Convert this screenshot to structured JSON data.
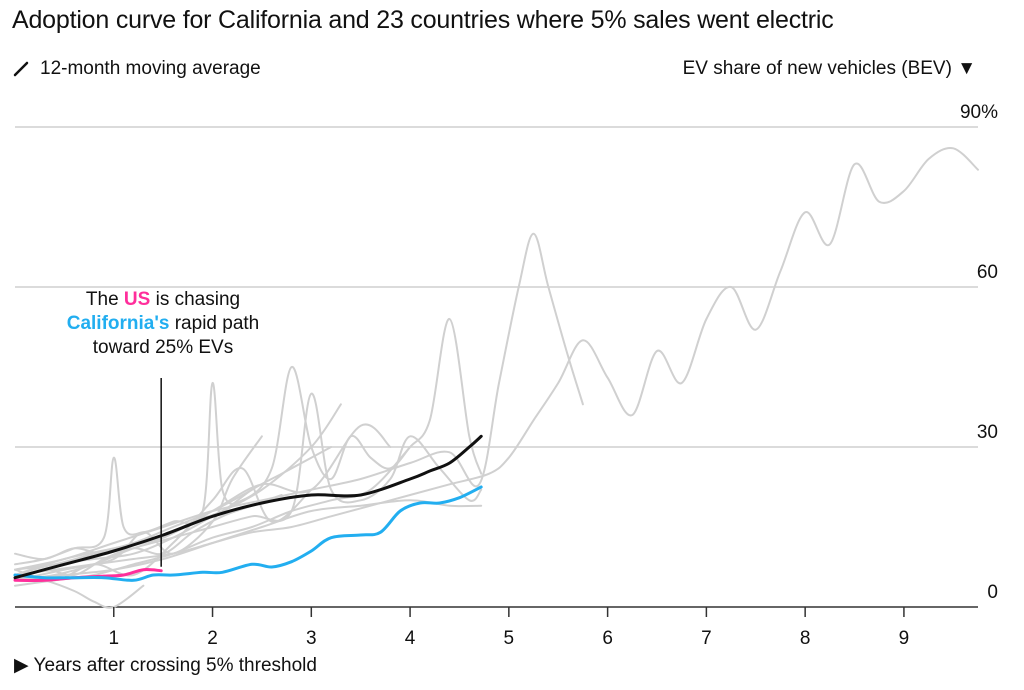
{
  "title": "Adoption curve for California and 23 countries where 5% sales went electric",
  "legend": {
    "icon": "diagonal-line-icon",
    "label": "12-month moving average"
  },
  "annotation": {
    "line1_prefix": "The ",
    "us": "US",
    "line1_suffix": " is chasing",
    "california": "California's",
    "line2_suffix": " rapid path",
    "line3": "toward 25% EVs"
  },
  "colors": {
    "us": "#ff2e9b",
    "california": "#22aef0",
    "average": "#111111",
    "countries": "#d0d0d0",
    "grid": "#cfcfcf"
  },
  "chart_data": {
    "type": "line",
    "ylabel": "EV share of new vehicles (BEV) ▼",
    "xlabel": "▶ Years after crossing 5% threshold",
    "xlim": [
      0,
      9.75
    ],
    "ylim": [
      0,
      90
    ],
    "xticks": [
      "1",
      "2",
      "3",
      "4",
      "5",
      "6",
      "7",
      "8",
      "9"
    ],
    "yticks": [
      "0",
      "30",
      "60",
      "90%"
    ],
    "grid": true,
    "series": [
      {
        "name": "12-month moving average",
        "role": "average",
        "x": [
          0,
          0.5,
          1.0,
          1.5,
          2.0,
          2.5,
          3.0,
          3.5,
          4.0,
          4.2,
          4.4,
          4.6,
          4.72
        ],
        "y": [
          5.5,
          8,
          10.5,
          13.5,
          17,
          19.5,
          21,
          21,
          24,
          25.5,
          27,
          30,
          32
        ]
      },
      {
        "name": "California",
        "role": "california",
        "x": [
          0,
          0.3,
          0.6,
          0.9,
          1.2,
          1.4,
          1.6,
          1.9,
          2.1,
          2.4,
          2.6,
          2.8,
          3.0,
          3.2,
          3.5,
          3.7,
          3.9,
          4.1,
          4.3,
          4.5,
          4.72
        ],
        "y": [
          6,
          5.5,
          5.5,
          5.5,
          5,
          6,
          6,
          6.5,
          6.5,
          8,
          7.5,
          8.5,
          10.5,
          13,
          13.5,
          14,
          18,
          19.5,
          19.5,
          20.5,
          22.5
        ]
      },
      {
        "name": "US",
        "role": "us",
        "x": [
          0,
          0.3,
          0.6,
          0.9,
          1.1,
          1.3,
          1.48
        ],
        "y": [
          5,
          5,
          5.5,
          5.8,
          6,
          7,
          6.8
        ]
      },
      {
        "name": "",
        "role": "country",
        "x": [
          0,
          0.4,
          0.8,
          1.2,
          1.6,
          2.0,
          2.4,
          2.8,
          3.2,
          3.6,
          4.0,
          4.4,
          4.8,
          5.0,
          5.25,
          5.5,
          5.75,
          6.0,
          6.25,
          6.5,
          6.75,
          7.0,
          7.25,
          7.5,
          7.75,
          8.0,
          8.25,
          8.5,
          8.75,
          9.0,
          9.25,
          9.5,
          9.75
        ],
        "y": [
          6,
          7,
          8,
          9,
          10,
          12,
          14,
          15,
          17,
          19,
          21,
          23,
          25,
          28,
          35,
          42,
          50,
          43,
          36,
          48,
          42,
          54,
          60,
          52,
          63,
          74,
          68,
          83,
          76,
          78,
          84,
          86,
          82
        ]
      },
      {
        "name": "",
        "role": "country",
        "x": [
          0,
          0.5,
          1.0,
          1.5,
          2.0,
          2.5,
          3.0,
          3.5,
          4.0,
          4.4,
          4.7,
          4.9,
          5.1,
          5.25,
          5.4,
          5.6,
          5.75
        ],
        "y": [
          7,
          9,
          12,
          15,
          18,
          20,
          22,
          24,
          27,
          29,
          23,
          42,
          60,
          70,
          60,
          47,
          38
        ]
      },
      {
        "name": "",
        "role": "country",
        "x": [
          0,
          0.3,
          0.6,
          0.9,
          1.0,
          1.1,
          1.3,
          1.6,
          1.9,
          2.0,
          2.1,
          2.3,
          2.6,
          2.8,
          3.0,
          3.2,
          3.4,
          3.6,
          3.8,
          4.0,
          4.2,
          4.4,
          4.6,
          4.72
        ],
        "y": [
          8,
          9,
          11,
          13,
          28,
          15,
          14,
          16,
          18,
          42,
          22,
          20,
          26,
          45,
          30,
          24,
          32,
          28,
          26,
          30,
          35,
          54,
          32,
          25
        ]
      },
      {
        "name": "",
        "role": "country",
        "x": [
          0,
          0.4,
          0.8,
          1.2,
          1.6,
          2.0,
          2.4,
          2.8,
          3.0,
          3.2,
          3.5,
          3.8,
          4.0,
          4.3,
          4.6,
          4.72
        ],
        "y": [
          5,
          6,
          8,
          11,
          13,
          15,
          17,
          18,
          40,
          22,
          20,
          24,
          32,
          26,
          20,
          22
        ]
      },
      {
        "name": "",
        "role": "country",
        "x": [
          0,
          0.4,
          0.8,
          1.2,
          1.6,
          2.0,
          2.5,
          3.0,
          3.3
        ],
        "y": [
          6,
          8,
          9,
          10,
          13,
          17,
          22,
          30,
          38
        ]
      },
      {
        "name": "",
        "role": "country",
        "x": [
          0,
          0.3,
          0.6,
          0.9,
          1.2,
          1.5,
          1.8,
          2.1,
          2.4,
          2.7,
          3.0,
          3.2
        ],
        "y": [
          10,
          9,
          11,
          10,
          12,
          13,
          16,
          18,
          22,
          25,
          28,
          30
        ]
      },
      {
        "name": "",
        "role": "country",
        "x": [
          0,
          0.4,
          0.8,
          1.2,
          1.6,
          2.0,
          2.3,
          2.6,
          3.0
        ],
        "y": [
          7,
          5,
          8,
          6,
          12,
          20,
          26,
          16,
          22
        ]
      },
      {
        "name": "",
        "role": "country",
        "x": [
          0,
          0.5,
          1.0,
          1.3,
          1.6,
          2.0,
          2.2,
          2.5
        ],
        "y": [
          5,
          7,
          9,
          14,
          10,
          16,
          24,
          32
        ]
      },
      {
        "name": "",
        "role": "country",
        "x": [
          0,
          0.3,
          0.6,
          0.8,
          1.0,
          1.3
        ],
        "y": [
          6,
          5,
          3,
          1,
          0,
          4
        ]
      },
      {
        "name": "",
        "role": "country",
        "x": [
          0,
          0.5,
          1.0,
          1.5,
          2.0,
          2.5,
          3.0,
          3.5,
          4.0,
          4.4,
          4.72
        ],
        "y": [
          5,
          6,
          7,
          9,
          12,
          15,
          18,
          19,
          20,
          19,
          19
        ]
      },
      {
        "name": "",
        "role": "country",
        "x": [
          0,
          0.4,
          0.8,
          1.2,
          1.6,
          2.0,
          2.4,
          2.8,
          3.2,
          3.6,
          4.0
        ],
        "y": [
          4,
          5,
          6,
          8,
          10,
          13,
          15,
          18,
          20,
          22,
          30
        ]
      },
      {
        "name": "",
        "role": "country",
        "x": [
          0,
          0.3,
          0.6,
          0.9,
          1.2,
          1.5,
          1.8,
          2.1,
          2.4,
          2.7
        ],
        "y": [
          5,
          7,
          6,
          9,
          11,
          10,
          14,
          17,
          19,
          21
        ]
      },
      {
        "name": "",
        "role": "country",
        "x": [
          0,
          0.5,
          1.0,
          1.5,
          2.0,
          2.5,
          3.0,
          3.5,
          3.8
        ],
        "y": [
          6,
          9,
          11,
          13,
          18,
          23,
          22,
          34,
          30
        ]
      },
      {
        "name": "",
        "role": "country",
        "x": [
          0,
          0.4,
          0.8,
          1.2,
          1.6,
          2.0,
          2.4
        ],
        "y": [
          7,
          8,
          10,
          12,
          15,
          18,
          22
        ]
      }
    ]
  }
}
